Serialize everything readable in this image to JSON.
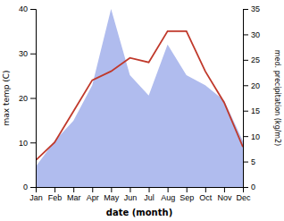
{
  "chart_data": {
    "type": "line",
    "xlabel": "date (month)",
    "ylabel": "max temp (C)",
    "y2label": "med. precipitation (kg/m2)",
    "categories": [
      "Jan",
      "Feb",
      "Mar",
      "Apr",
      "May",
      "Jun",
      "Jul",
      "Aug",
      "Sep",
      "Oct",
      "Nov",
      "Dec"
    ],
    "series": [
      {
        "type": "area",
        "axis": "y2",
        "color": "#b0bcee",
        "values": [
          4,
          9,
          13,
          20,
          35,
          22,
          18,
          28,
          22,
          20,
          17,
          9
        ]
      },
      {
        "type": "line",
        "color": "#c0392b",
        "values": [
          6,
          10,
          17,
          24,
          26,
          29,
          28,
          35,
          35,
          26,
          19,
          9
        ]
      }
    ],
    "ylim": [
      0,
      40
    ],
    "yticks": [
      0,
      10,
      20,
      30,
      40
    ],
    "y2lim": [
      0,
      35
    ],
    "y2ticks": [
      0,
      5,
      10,
      15,
      20,
      25,
      30,
      35
    ],
    "grid": false
  }
}
